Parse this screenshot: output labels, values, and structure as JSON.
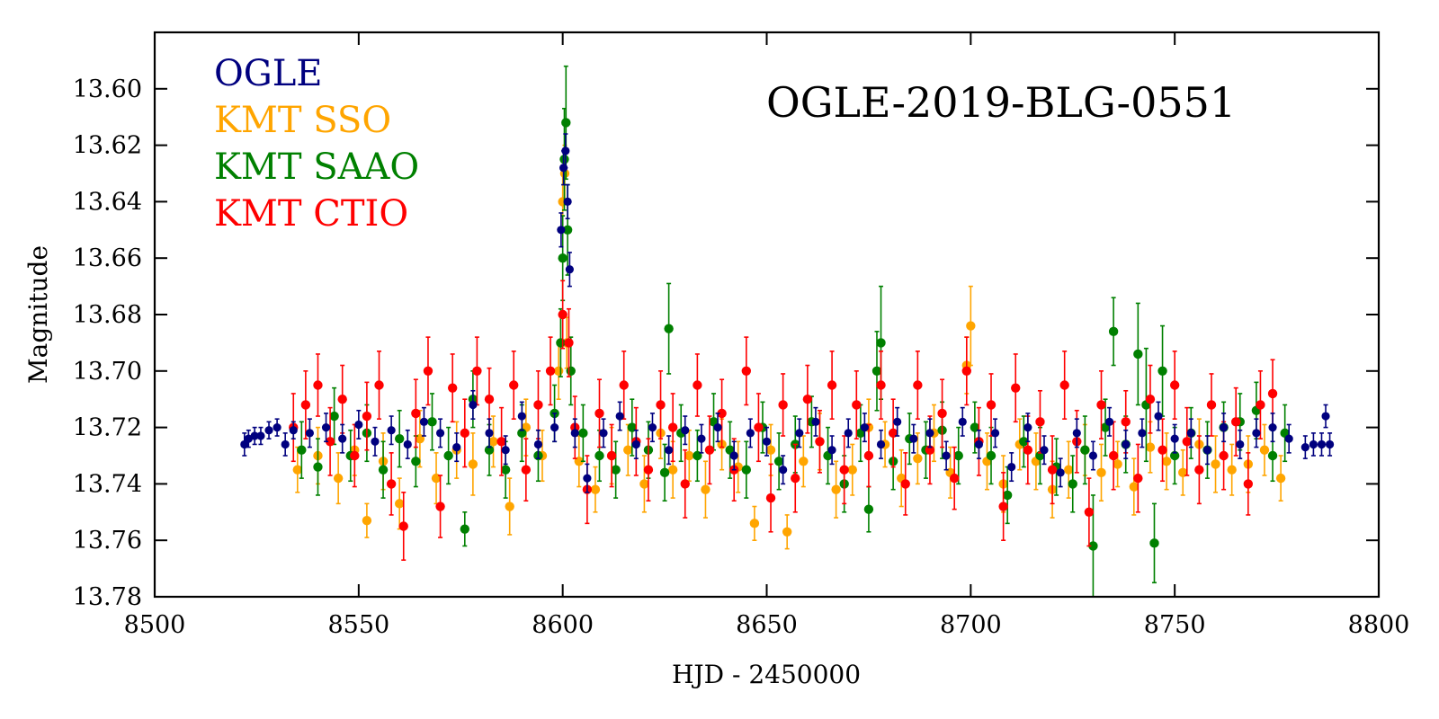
{
  "chart_data": {
    "type": "scatter",
    "title": "OGLE-2019-BLG-0551",
    "xlabel": "HJD - 2450000",
    "ylabel": "Magnitude",
    "xlim": [
      8500,
      8800
    ],
    "ylim": [
      13.78,
      13.58
    ],
    "y_inverted": true,
    "legend_position": "top-left",
    "x_ticks": [
      8500,
      8550,
      8600,
      8650,
      8700,
      8750,
      8800
    ],
    "x_tick_labels": [
      "8500",
      "8550",
      "8600",
      "8650",
      "8700",
      "8750",
      "8800"
    ],
    "y_ticks": [
      13.6,
      13.62,
      13.64,
      13.66,
      13.68,
      13.7,
      13.72,
      13.74,
      13.76,
      13.78
    ],
    "y_tick_labels": [
      "13.60",
      "13.62",
      "13.64",
      "13.66",
      "13.68",
      "13.70",
      "13.72",
      "13.74",
      "13.76",
      "13.78"
    ],
    "series": [
      {
        "name": "KMT SSO",
        "color": "#ffa500",
        "x": [
          8535,
          8540,
          8545,
          8549,
          8552,
          8556,
          8560,
          8565,
          8569,
          8574,
          8578,
          8583,
          8587,
          8591,
          8595,
          8599,
          8600,
          8600.5,
          8601,
          8604,
          8608,
          8612,
          8616,
          8620,
          8624,
          8627,
          8631,
          8635,
          8639,
          8643,
          8647,
          8651,
          8655,
          8659,
          8663,
          8667,
          8671,
          8675,
          8679,
          8683,
          8687,
          8691,
          8695,
          8699,
          8700,
          8704,
          8708,
          8712,
          8716,
          8720,
          8724,
          8728,
          8732,
          8736,
          8740,
          8744,
          8748,
          8752,
          8756,
          8760,
          8764,
          8768,
          8772,
          8776
        ],
        "y": [
          13.735,
          13.73,
          13.738,
          13.728,
          13.753,
          13.732,
          13.747,
          13.724,
          13.738,
          13.728,
          13.733,
          13.725,
          13.748,
          13.72,
          13.73,
          13.7,
          13.64,
          13.63,
          13.69,
          13.732,
          13.742,
          13.73,
          13.728,
          13.74,
          13.722,
          13.735,
          13.73,
          13.742,
          13.726,
          13.734,
          13.754,
          13.728,
          13.757,
          13.732,
          13.725,
          13.742,
          13.735,
          13.72,
          13.726,
          13.738,
          13.731,
          13.722,
          13.736,
          13.698,
          13.684,
          13.732,
          13.74,
          13.726,
          13.732,
          13.742,
          13.735,
          13.728,
          13.736,
          13.733,
          13.741,
          13.727,
          13.732,
          13.736,
          13.726,
          13.733,
          13.735,
          13.733,
          13.728,
          13.738
        ],
        "err": [
          0.008,
          0.01,
          0.009,
          0.009,
          0.006,
          0.01,
          0.009,
          0.01,
          0.009,
          0.01,
          0.011,
          0.009,
          0.01,
          0.01,
          0.009,
          0.01,
          0.01,
          0.01,
          0.009,
          0.009,
          0.008,
          0.01,
          0.009,
          0.01,
          0.009,
          0.01,
          0.009,
          0.01,
          0.009,
          0.009,
          0.006,
          0.009,
          0.006,
          0.009,
          0.01,
          0.01,
          0.009,
          0.01,
          0.008,
          0.01,
          0.009,
          0.01,
          0.009,
          0.01,
          0.014,
          0.01,
          0.01,
          0.009,
          0.01,
          0.01,
          0.01,
          0.009,
          0.01,
          0.008,
          0.01,
          0.009,
          0.01,
          0.008,
          0.009,
          0.01,
          0.009,
          0.01,
          0.009,
          0.008
        ]
      },
      {
        "name": "KMT SAAO",
        "color": "#008000",
        "x": [
          8536,
          8540,
          8544,
          8548,
          8552,
          8556,
          8560,
          8564,
          8568,
          8572,
          8576,
          8578,
          8582,
          8586,
          8590,
          8594,
          8598,
          8599.5,
          8600,
          8600.4,
          8600.8,
          8601.2,
          8602,
          8605,
          8609,
          8613,
          8617,
          8621,
          8625,
          8626,
          8629,
          8633,
          8637,
          8641,
          8645,
          8649,
          8653,
          8657,
          8661,
          8665,
          8669,
          8673,
          8675,
          8677,
          8678,
          8681,
          8685,
          8689,
          8693,
          8697,
          8701,
          8705,
          8709,
          8713,
          8717,
          8721,
          8725,
          8728,
          8730,
          8733,
          8735,
          8738,
          8741,
          8743,
          8745,
          8747,
          8750,
          8754,
          8758,
          8762,
          8766,
          8770,
          8774,
          8777
        ],
        "y": [
          13.728,
          13.734,
          13.716,
          13.73,
          13.722,
          13.735,
          13.724,
          13.732,
          13.718,
          13.73,
          13.756,
          13.71,
          13.728,
          13.735,
          13.722,
          13.73,
          13.715,
          13.69,
          13.66,
          13.625,
          13.612,
          13.65,
          13.7,
          13.722,
          13.73,
          13.735,
          13.72,
          13.728,
          13.736,
          13.685,
          13.722,
          13.73,
          13.718,
          13.728,
          13.735,
          13.72,
          13.732,
          13.726,
          13.718,
          13.73,
          13.74,
          13.722,
          13.749,
          13.7,
          13.69,
          13.732,
          13.724,
          13.728,
          13.721,
          13.73,
          13.72,
          13.73,
          13.744,
          13.725,
          13.73,
          13.734,
          13.74,
          13.728,
          13.762,
          13.72,
          13.686,
          13.726,
          13.694,
          13.712,
          13.761,
          13.7,
          13.73,
          13.722,
          13.728,
          13.72,
          13.718,
          13.714,
          13.73,
          13.722
        ],
        "err": [
          0.01,
          0.01,
          0.01,
          0.009,
          0.01,
          0.01,
          0.01,
          0.009,
          0.01,
          0.01,
          0.006,
          0.01,
          0.009,
          0.01,
          0.01,
          0.009,
          0.01,
          0.012,
          0.015,
          0.018,
          0.02,
          0.016,
          0.012,
          0.01,
          0.009,
          0.01,
          0.01,
          0.01,
          0.01,
          0.016,
          0.01,
          0.009,
          0.01,
          0.01,
          0.01,
          0.009,
          0.01,
          0.01,
          0.009,
          0.01,
          0.01,
          0.01,
          0.008,
          0.014,
          0.02,
          0.01,
          0.009,
          0.01,
          0.01,
          0.01,
          0.009,
          0.01,
          0.01,
          0.009,
          0.01,
          0.01,
          0.01,
          0.012,
          0.018,
          0.01,
          0.012,
          0.01,
          0.018,
          0.02,
          0.014,
          0.016,
          0.01,
          0.009,
          0.01,
          0.009,
          0.01,
          0.01,
          0.009,
          0.01
        ]
      },
      {
        "name": "KMT CTIO",
        "color": "#ff0000",
        "x": [
          8534,
          8537,
          8540,
          8543,
          8546,
          8549,
          8552,
          8555,
          8558,
          8561,
          8564,
          8567,
          8570,
          8573,
          8576,
          8579,
          8582,
          8585,
          8588,
          8591,
          8594,
          8597,
          8600,
          8601.5,
          8603,
          8606,
          8609,
          8612,
          8615,
          8618,
          8621,
          8624,
          8627,
          8630,
          8633,
          8636,
          8639,
          8642,
          8645,
          8648,
          8651,
          8654,
          8657,
          8660,
          8663,
          8666,
          8669,
          8672,
          8675,
          8678,
          8681,
          8684,
          8687,
          8690,
          8693,
          8696,
          8699,
          8702,
          8705,
          8708,
          8711,
          8714,
          8717,
          8720,
          8723,
          8726,
          8729,
          8732,
          8735,
          8738,
          8741,
          8744,
          8747,
          8750,
          8753,
          8756,
          8759,
          8762,
          8765,
          8768,
          8771,
          8774
        ],
        "y": [
          13.72,
          13.712,
          13.705,
          13.725,
          13.71,
          13.73,
          13.716,
          13.705,
          13.74,
          13.755,
          13.715,
          13.7,
          13.748,
          13.706,
          13.722,
          13.7,
          13.71,
          13.725,
          13.705,
          13.735,
          13.712,
          13.7,
          13.68,
          13.69,
          13.72,
          13.742,
          13.715,
          13.73,
          13.705,
          13.725,
          13.735,
          13.712,
          13.72,
          13.74,
          13.705,
          13.728,
          13.715,
          13.735,
          13.7,
          13.72,
          13.745,
          13.712,
          13.738,
          13.71,
          13.725,
          13.705,
          13.735,
          13.712,
          13.73,
          13.705,
          13.722,
          13.74,
          13.705,
          13.728,
          13.715,
          13.738,
          13.7,
          13.725,
          13.712,
          13.748,
          13.706,
          13.728,
          13.718,
          13.735,
          13.705,
          13.725,
          13.75,
          13.712,
          13.73,
          13.718,
          13.738,
          13.71,
          13.728,
          13.705,
          13.725,
          13.735,
          13.712,
          13.73,
          13.718,
          13.74,
          13.712,
          13.708
        ],
        "err": [
          0.012,
          0.012,
          0.011,
          0.012,
          0.012,
          0.011,
          0.012,
          0.012,
          0.011,
          0.012,
          0.012,
          0.012,
          0.011,
          0.012,
          0.012,
          0.012,
          0.011,
          0.012,
          0.012,
          0.011,
          0.012,
          0.012,
          0.012,
          0.012,
          0.011,
          0.012,
          0.012,
          0.011,
          0.012,
          0.012,
          0.011,
          0.012,
          0.012,
          0.012,
          0.011,
          0.012,
          0.012,
          0.011,
          0.012,
          0.012,
          0.012,
          0.011,
          0.012,
          0.012,
          0.011,
          0.012,
          0.012,
          0.012,
          0.011,
          0.012,
          0.012,
          0.011,
          0.012,
          0.012,
          0.012,
          0.011,
          0.012,
          0.012,
          0.011,
          0.012,
          0.012,
          0.012,
          0.011,
          0.012,
          0.012,
          0.011,
          0.012,
          0.012,
          0.012,
          0.011,
          0.012,
          0.012,
          0.011,
          0.012,
          0.012,
          0.012,
          0.011,
          0.012,
          0.012,
          0.011,
          0.012,
          0.012
        ]
      },
      {
        "name": "OGLE",
        "color": "#00007f",
        "x": [
          8522,
          8523,
          8524.5,
          8526,
          8528,
          8530,
          8532,
          8534,
          8538,
          8542,
          8546,
          8550,
          8554,
          8558,
          8562,
          8566,
          8570,
          8574,
          8578,
          8582,
          8586,
          8590,
          8594,
          8598,
          8599.6,
          8600.2,
          8600.7,
          8601.2,
          8601.7,
          8603,
          8606,
          8610,
          8614,
          8618,
          8622,
          8626,
          8630,
          8634,
          8638,
          8642,
          8646,
          8650,
          8654,
          8658,
          8662,
          8666,
          8670,
          8674,
          8678,
          8682,
          8686,
          8690,
          8694,
          8698,
          8702,
          8706,
          8710,
          8714,
          8718,
          8722,
          8726,
          8730,
          8734,
          8738,
          8742,
          8746,
          8750,
          8754,
          8758,
          8762,
          8766,
          8770,
          8774,
          8778,
          8782,
          8784,
          8786,
          8787,
          8788
        ],
        "y": [
          13.726,
          13.724,
          13.723,
          13.723,
          13.721,
          13.72,
          13.726,
          13.721,
          13.722,
          13.72,
          13.724,
          13.719,
          13.725,
          13.721,
          13.726,
          13.718,
          13.722,
          13.727,
          13.712,
          13.722,
          13.728,
          13.716,
          13.726,
          13.72,
          13.65,
          13.628,
          13.622,
          13.64,
          13.664,
          13.722,
          13.738,
          13.722,
          13.716,
          13.726,
          13.72,
          13.728,
          13.721,
          13.724,
          13.72,
          13.73,
          13.722,
          13.725,
          13.735,
          13.722,
          13.718,
          13.728,
          13.722,
          13.72,
          13.726,
          13.718,
          13.724,
          13.722,
          13.73,
          13.718,
          13.726,
          13.722,
          13.734,
          13.72,
          13.728,
          13.736,
          13.722,
          13.73,
          13.718,
          13.726,
          13.722,
          13.716,
          13.724,
          13.722,
          13.728,
          13.72,
          13.726,
          13.722,
          13.72,
          13.724,
          13.727,
          13.726,
          13.726,
          13.716,
          13.726
        ],
        "err": [
          0.004,
          0.003,
          0.003,
          0.003,
          0.003,
          0.003,
          0.004,
          0.003,
          0.005,
          0.005,
          0.005,
          0.005,
          0.005,
          0.005,
          0.005,
          0.005,
          0.005,
          0.005,
          0.005,
          0.005,
          0.005,
          0.005,
          0.005,
          0.005,
          0.006,
          0.006,
          0.006,
          0.006,
          0.006,
          0.005,
          0.005,
          0.005,
          0.005,
          0.005,
          0.005,
          0.005,
          0.005,
          0.005,
          0.005,
          0.005,
          0.005,
          0.005,
          0.005,
          0.005,
          0.005,
          0.005,
          0.005,
          0.005,
          0.005,
          0.005,
          0.005,
          0.005,
          0.005,
          0.005,
          0.005,
          0.005,
          0.005,
          0.005,
          0.005,
          0.005,
          0.005,
          0.005,
          0.005,
          0.005,
          0.005,
          0.005,
          0.005,
          0.005,
          0.005,
          0.005,
          0.005,
          0.005,
          0.005,
          0.005,
          0.004,
          0.004,
          0.004,
          0.004,
          0.004
        ]
      }
    ],
    "legend": [
      {
        "label": "OGLE",
        "color": "#00007f"
      },
      {
        "label": "KMT SSO",
        "color": "#ffa500"
      },
      {
        "label": "KMT SAAO",
        "color": "#008000"
      },
      {
        "label": "KMT CTIO",
        "color": "#ff0000"
      }
    ]
  }
}
